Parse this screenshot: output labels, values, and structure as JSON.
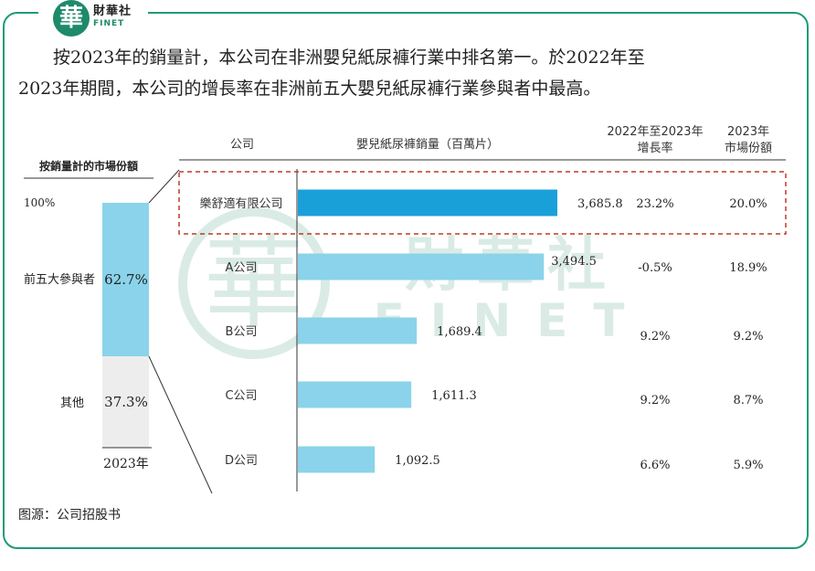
{
  "brand": {
    "seal_char": "華",
    "name": "財華社",
    "name_en": "FINET"
  },
  "paragraph": {
    "line1": "按2023年的銷量計，本公司在非洲嬰兒紙尿褲行業中排名第一。於2022年至",
    "line2": "2023年期間，本公司的增長率在非洲前五大嬰兒紙尿褲行業參與者中最高。"
  },
  "watermark": {
    "text": "財華社",
    "text_en": "FINET"
  },
  "colors": {
    "frame": "#1f9a78",
    "highlight_bar": "#1aa0d8",
    "bar": "#8ad3ea",
    "share_top": "#8ad3ea",
    "share_bottom": "#ededed",
    "highlight_box": "#c0392b"
  },
  "chart_data": [
    {
      "type": "bar",
      "title": "按銷量計的市場份額",
      "stacked": true,
      "categories": [
        "2023年"
      ],
      "y_top_label": "100%",
      "series": [
        {
          "name": "前五大參與者",
          "values": [
            62.7
          ],
          "label": "62.7%"
        },
        {
          "name": "其他",
          "values": [
            37.3
          ],
          "label": "37.3%"
        }
      ]
    },
    {
      "type": "table",
      "orientation": "horizontal-bar",
      "columns": [
        "公司",
        "嬰兒紙尿褲銷量（百萬片）",
        "2022年至2023年增長率",
        "2023年市場份額"
      ],
      "col_growth_line1": "2022年至2023年",
      "col_growth_line2": "增長率",
      "col_share_line1": "2023年",
      "col_share_line2": "市場份額",
      "rows": [
        {
          "company": "樂舒適有限公司",
          "sales": 3685.8,
          "sales_label": "3,685.8",
          "growth": "23.2%",
          "share": "20.0%",
          "highlight": true
        },
        {
          "company": "A公司",
          "sales": 3494.5,
          "sales_label": "3,494.5",
          "growth": "-0.5%",
          "share": "18.9%"
        },
        {
          "company": "B公司",
          "sales": 1689.4,
          "sales_label": "1,689.4",
          "growth": "9.2%",
          "share": "9.2%"
        },
        {
          "company": "C公司",
          "sales": 1611.3,
          "sales_label": "1,611.3",
          "growth": "9.2%",
          "share": "8.7%"
        },
        {
          "company": "D公司",
          "sales": 1092.5,
          "sales_label": "1,092.5",
          "growth": "6.6%",
          "share": "5.9%"
        }
      ],
      "x_unit": "百萬片"
    }
  ],
  "source": "图源：公司招股书"
}
